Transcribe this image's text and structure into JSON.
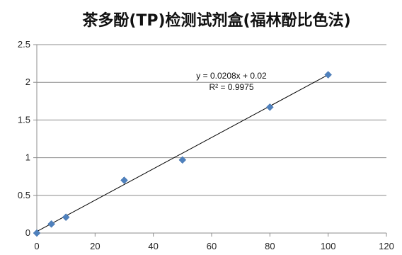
{
  "chart_data": {
    "type": "scatter",
    "title": "茶多酚(TP)检测试剂盒(福林酚比色法)",
    "xlabel": "",
    "ylabel": "",
    "xlim": [
      0,
      120
    ],
    "ylim": [
      0,
      2.5
    ],
    "x_ticks": [
      "0",
      "20",
      "40",
      "60",
      "80",
      "100",
      "120"
    ],
    "y_ticks": [
      "0",
      "0.5",
      "1",
      "1.5",
      "2",
      "2.5"
    ],
    "grid": "horizontal",
    "series": [
      {
        "color": "#4F81BD",
        "marker": "diamond",
        "x": [
          0,
          5,
          10,
          30,
          50,
          80,
          100
        ],
        "y": [
          0.0,
          0.12,
          0.21,
          0.7,
          0.97,
          1.67,
          2.1
        ]
      }
    ],
    "trendline": {
      "slope": 0.0208,
      "intercept": 0.02,
      "color": "#000000",
      "equation": "y = 0.0208x + 0.02",
      "r2_label": "R² = 0.9975"
    }
  }
}
